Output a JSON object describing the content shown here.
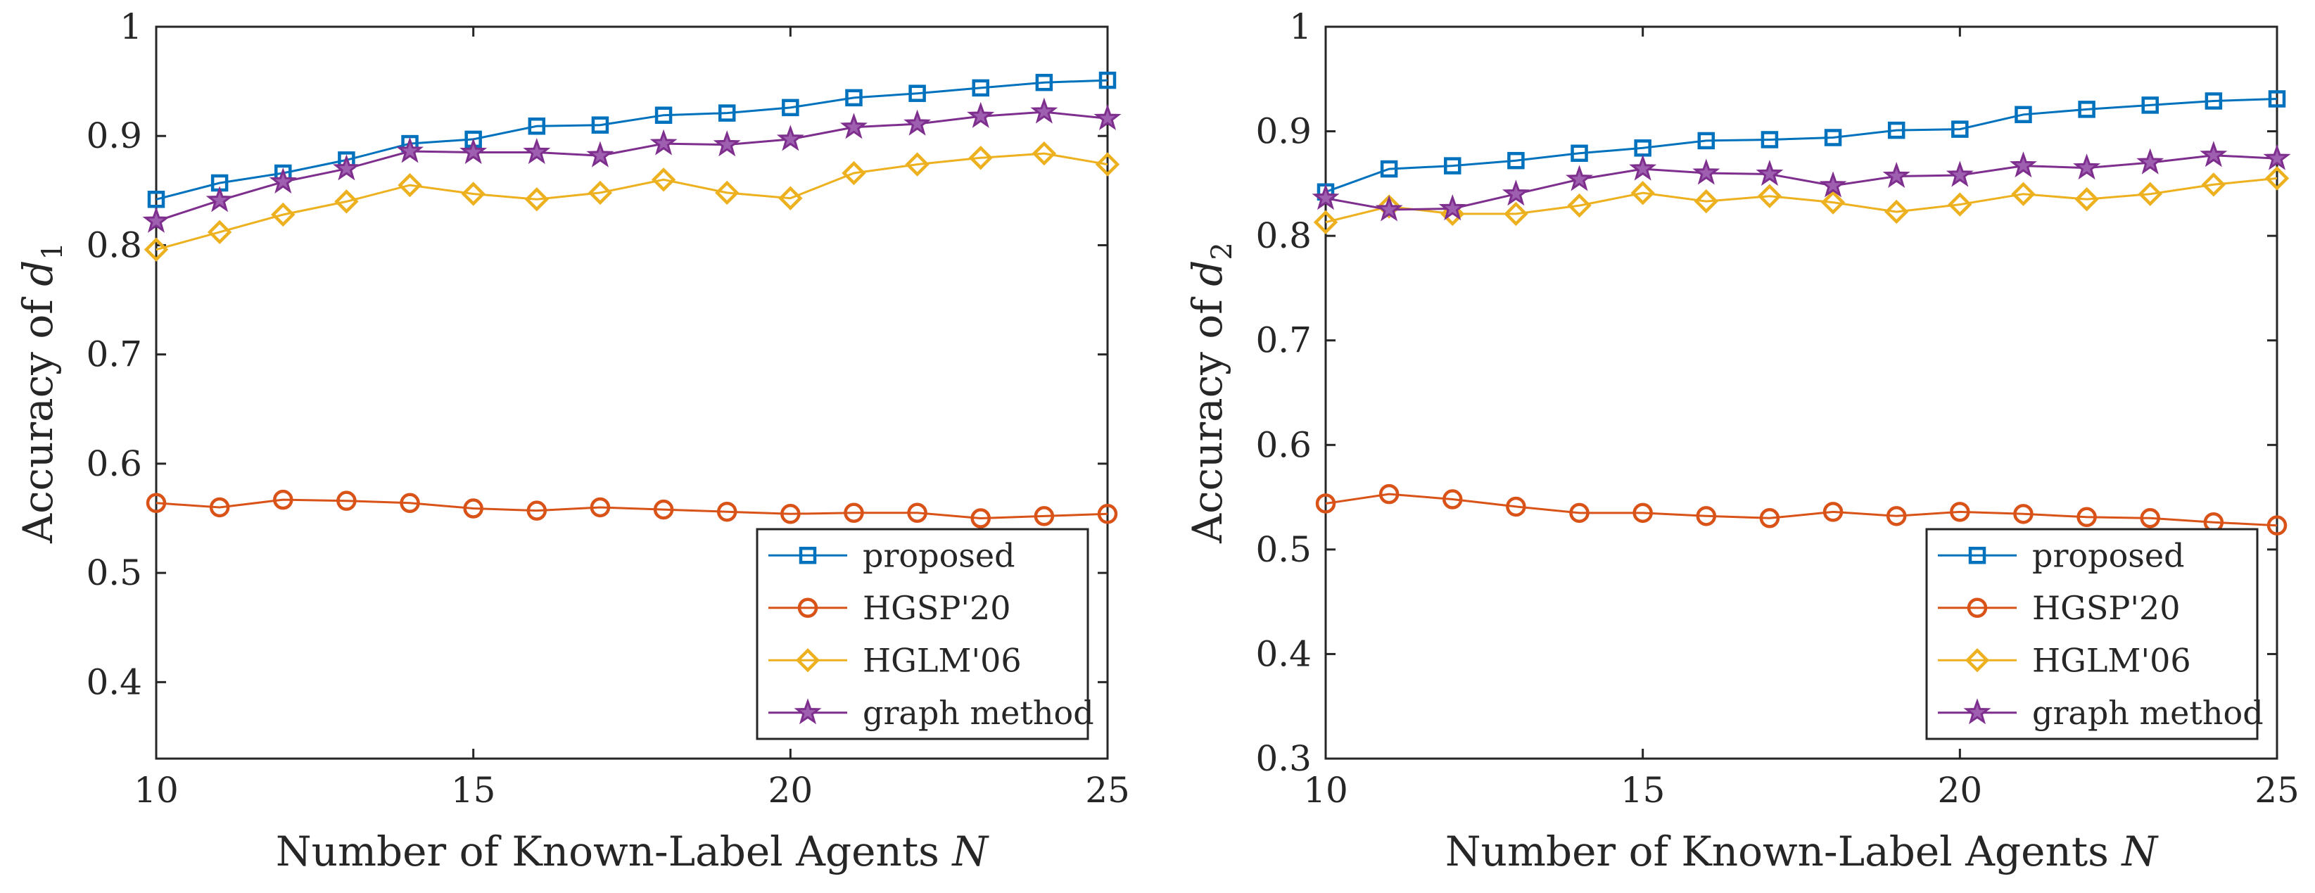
{
  "chart_data": [
    {
      "type": "line",
      "title": "",
      "xlabel": "Number of Known-Label Agents N",
      "xlabel_parts": {
        "text": "Number of Known-Label Agents ",
        "var": "N"
      },
      "ylabel": "Accuracy of d1",
      "ylabel_parts": {
        "text": "Accuracy of ",
        "var": "d",
        "sub": "1"
      },
      "xlim": [
        10,
        25
      ],
      "ylim": [
        0.33,
        1.0
      ],
      "xticks": [
        10,
        15,
        20,
        25
      ],
      "xtick_labels": [
        "10",
        "15",
        "20",
        "25"
      ],
      "yticks": [
        0.4,
        0.5,
        0.6,
        0.7,
        0.8,
        0.9,
        1.0
      ],
      "ytick_labels": [
        "0.4",
        "0.5",
        "0.6",
        "0.7",
        "0.8",
        "0.9",
        "1"
      ],
      "grid": false,
      "legend_position": "bottom-right",
      "x": [
        10,
        11,
        12,
        13,
        14,
        15,
        16,
        17,
        18,
        19,
        20,
        21,
        22,
        23,
        24,
        25
      ],
      "series": [
        {
          "name": "proposed",
          "color": "#0072BD",
          "marker": "square",
          "values": [
            0.842,
            0.857,
            0.866,
            0.878,
            0.893,
            0.897,
            0.909,
            0.91,
            0.919,
            0.921,
            0.926,
            0.935,
            0.939,
            0.944,
            0.949,
            0.951
          ]
        },
        {
          "name": "HGSP'20",
          "color": "#D95319",
          "marker": "circle",
          "values": [
            0.564,
            0.56,
            0.567,
            0.566,
            0.564,
            0.559,
            0.557,
            0.56,
            0.558,
            0.556,
            0.554,
            0.555,
            0.555,
            0.55,
            0.552,
            0.554
          ]
        },
        {
          "name": "HGLM'06",
          "color": "#EDB120",
          "marker": "diamond",
          "values": [
            0.796,
            0.812,
            0.828,
            0.84,
            0.855,
            0.847,
            0.842,
            0.848,
            0.86,
            0.848,
            0.843,
            0.866,
            0.874,
            0.88,
            0.884,
            0.874
          ]
        },
        {
          "name": "graph method",
          "color": "#7E2F8E",
          "marker": "star",
          "values": [
            0.822,
            0.841,
            0.858,
            0.87,
            0.886,
            0.885,
            0.885,
            0.882,
            0.893,
            0.892,
            0.897,
            0.908,
            0.911,
            0.918,
            0.922,
            0.916
          ]
        }
      ]
    },
    {
      "type": "line",
      "title": "",
      "xlabel": "Number of Known-Label Agents N",
      "xlabel_parts": {
        "text": "Number of Known-Label Agents ",
        "var": "N"
      },
      "ylabel": "Accuracy of d2",
      "ylabel_parts": {
        "text": "Accuracy of ",
        "var": "d",
        "sub": "2"
      },
      "xlim": [
        10,
        25
      ],
      "ylim": [
        0.3,
        1.0
      ],
      "xticks": [
        10,
        15,
        20,
        25
      ],
      "xtick_labels": [
        "10",
        "15",
        "20",
        "25"
      ],
      "yticks": [
        0.3,
        0.4,
        0.5,
        0.6,
        0.7,
        0.8,
        0.9,
        1.0
      ],
      "ytick_labels": [
        "0.3",
        "0.4",
        "0.5",
        "0.6",
        "0.7",
        "0.8",
        "0.9",
        "1"
      ],
      "grid": false,
      "legend_position": "bottom-right",
      "x": [
        10,
        11,
        12,
        13,
        14,
        15,
        16,
        17,
        18,
        19,
        20,
        21,
        22,
        23,
        24,
        25
      ],
      "series": [
        {
          "name": "proposed",
          "color": "#0072BD",
          "marker": "square",
          "values": [
            0.842,
            0.864,
            0.867,
            0.872,
            0.879,
            0.884,
            0.891,
            0.892,
            0.894,
            0.901,
            0.902,
            0.916,
            0.921,
            0.925,
            0.929,
            0.931
          ]
        },
        {
          "name": "HGSP'20",
          "color": "#D95319",
          "marker": "circle",
          "values": [
            0.544,
            0.553,
            0.548,
            0.541,
            0.535,
            0.535,
            0.532,
            0.53,
            0.536,
            0.532,
            0.536,
            0.534,
            0.531,
            0.53,
            0.526,
            0.523
          ]
        },
        {
          "name": "HGLM'06",
          "color": "#EDB120",
          "marker": "diamond",
          "values": [
            0.813,
            0.828,
            0.821,
            0.821,
            0.829,
            0.841,
            0.833,
            0.838,
            0.832,
            0.823,
            0.83,
            0.84,
            0.835,
            0.84,
            0.849,
            0.855
          ]
        },
        {
          "name": "graph method",
          "color": "#7E2F8E",
          "marker": "star",
          "values": [
            0.836,
            0.825,
            0.826,
            0.84,
            0.854,
            0.864,
            0.86,
            0.859,
            0.848,
            0.857,
            0.858,
            0.867,
            0.865,
            0.87,
            0.877,
            0.874
          ]
        }
      ]
    }
  ]
}
